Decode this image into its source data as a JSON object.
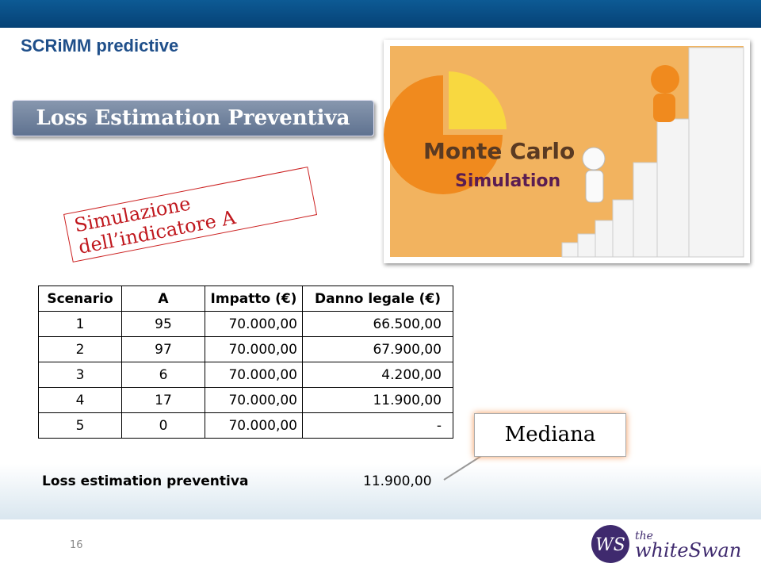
{
  "header": {
    "title": "SCRiMM predictive"
  },
  "banner": {
    "label": "Loss Estimation Preventiva"
  },
  "image": {
    "line1": "Monte Carlo",
    "line2": "Simulation"
  },
  "stamp": {
    "label": "Simulazione dell’indicatore A"
  },
  "table": {
    "columns": [
      "Scenario",
      "A",
      "Impatto (€)",
      "Danno legale (€)"
    ],
    "rows": [
      [
        "1",
        "95",
        "70.000,00",
        "66.500,00"
      ],
      [
        "2",
        "97",
        "70.000,00",
        "67.900,00"
      ],
      [
        "3",
        "6",
        "70.000,00",
        "4.200,00"
      ],
      [
        "4",
        "17",
        "70.000,00",
        "11.900,00"
      ],
      [
        "5",
        "0",
        "70.000,00",
        "-"
      ]
    ]
  },
  "callout": {
    "label": "Mediana"
  },
  "summary": {
    "label": "Loss estimation preventiva",
    "value": "11.900,00"
  },
  "footer": {
    "page": "16",
    "logo_mark": "WS",
    "logo_small": "the",
    "logo_name": "whiteSwan"
  }
}
